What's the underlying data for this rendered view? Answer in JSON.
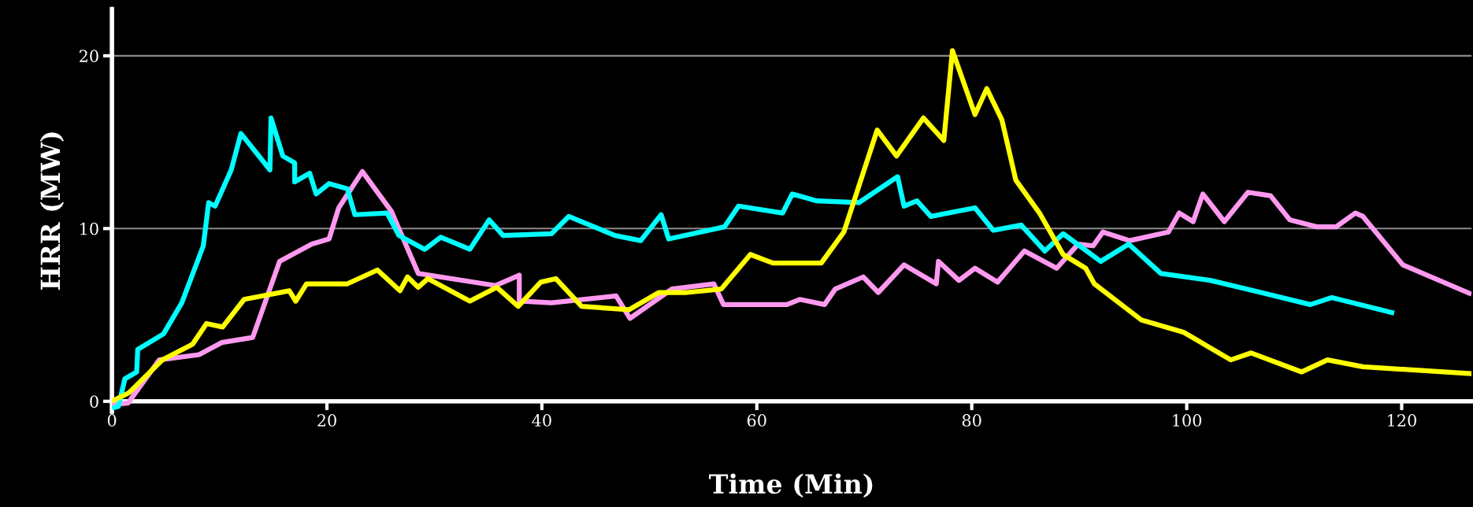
{
  "chart_data": {
    "type": "line",
    "xlabel": "Time (Min)",
    "ylabel": "HRR (MW)",
    "xlim": [
      0,
      126.5
    ],
    "ylim": [
      -0.6,
      22.7
    ],
    "xticks": [
      0,
      20,
      40,
      60,
      80,
      100,
      120
    ],
    "yticks": [
      0,
      10,
      20
    ],
    "grid": "y",
    "marker": "none",
    "line_style": "solid",
    "series": [
      {
        "color": "#ff99f0",
        "x": [
          0,
          1.5,
          4.4,
          8.1,
          10.2,
          13.1,
          15.6,
          18.6,
          20.2,
          21.1,
          23.3,
          26.0,
          28.5,
          35.7,
          37.9,
          37.9,
          40.9,
          46.9,
          48.2,
          52.1,
          56.0,
          56.9,
          62.8,
          64.0,
          66.3,
          67.3,
          69.9,
          71.3,
          73.7,
          76.7,
          76.9,
          78.8,
          80.3,
          82.4,
          84.9,
          87.9,
          89.9,
          91.3,
          92.2,
          94.7,
          98.3,
          99.3,
          100.6,
          101.5,
          103.5,
          105.7,
          107.8,
          109.6,
          112.1,
          113.9,
          115.7,
          116.4,
          120.1,
          126.5
        ],
        "values": [
          -0.2,
          -0.1,
          2.4,
          2.7,
          3.4,
          3.7,
          8.1,
          9.1,
          9.4,
          11.2,
          13.3,
          11.0,
          7.4,
          6.7,
          7.3,
          5.8,
          5.7,
          6.1,
          4.8,
          6.5,
          6.8,
          5.6,
          5.6,
          5.9,
          5.6,
          6.5,
          7.2,
          6.3,
          7.9,
          6.8,
          8.1,
          7.0,
          7.7,
          6.9,
          8.7,
          7.7,
          9.1,
          9.0,
          9.8,
          9.3,
          9.8,
          10.9,
          10.4,
          12.0,
          10.4,
          12.1,
          11.9,
          10.5,
          10.1,
          10.1,
          10.9,
          10.7,
          7.9,
          6.2
        ]
      },
      {
        "color": "#00ffff",
        "x": [
          0,
          0.6,
          1.2,
          2.3,
          2.4,
          4.8,
          6.5,
          8.5,
          9.0,
          9.6,
          11.1,
          12.0,
          14.7,
          14.8,
          15.9,
          17.0,
          17.0,
          18.4,
          19.0,
          20.2,
          21.9,
          22.6,
          25.6,
          26.7,
          29.1,
          30.6,
          33.3,
          35.1,
          36.4,
          40.9,
          42.5,
          46.8,
          49.2,
          51.1,
          51.8,
          57.0,
          58.3,
          62.4,
          63.3,
          65.6,
          69.5,
          73.1,
          73.7,
          74.9,
          76.2,
          80.3,
          82.0,
          84.6,
          86.8,
          88.5,
          92.0,
          94.6,
          97.6,
          102.2,
          106.9,
          111.5,
          113.5,
          119.3
        ],
        "values": [
          -0.4,
          -0.3,
          1.3,
          1.7,
          3.0,
          3.9,
          5.7,
          9.0,
          11.5,
          11.3,
          13.4,
          15.5,
          13.4,
          16.4,
          14.2,
          13.8,
          12.7,
          13.2,
          12.0,
          12.6,
          12.3,
          10.8,
          10.9,
          9.6,
          8.8,
          9.5,
          8.8,
          10.5,
          9.6,
          9.7,
          10.7,
          9.6,
          9.3,
          10.8,
          9.4,
          10.1,
          11.3,
          10.9,
          12.0,
          11.6,
          11.5,
          13.0,
          11.3,
          11.6,
          10.7,
          11.2,
          9.9,
          10.2,
          8.7,
          9.7,
          8.1,
          9.1,
          7.4,
          7.0,
          6.3,
          5.6,
          6.0,
          5.1
        ]
      },
      {
        "color": "#ffff00",
        "x": [
          0,
          1.6,
          4.7,
          7.5,
          8.8,
          10.3,
          12.3,
          16.5,
          17.1,
          18.1,
          21.9,
          24.7,
          26.8,
          27.5,
          28.5,
          29.4,
          33.3,
          35.8,
          37.8,
          39.9,
          41.3,
          43.7,
          48.1,
          50.9,
          53.5,
          56.7,
          59.4,
          61.5,
          66.0,
          68.1,
          69.1,
          71.2,
          73.0,
          75.5,
          77.4,
          78.2,
          80.3,
          81.4,
          82.8,
          84.1,
          86.3,
          88.5,
          90.6,
          91.4,
          95.8,
          99.7,
          104.1,
          106.0,
          110.7,
          113.1,
          116.4,
          126.5
        ],
        "values": [
          0.0,
          0.5,
          2.4,
          3.3,
          4.5,
          4.3,
          5.9,
          6.4,
          5.8,
          6.8,
          6.8,
          7.6,
          6.4,
          7.2,
          6.6,
          7.1,
          5.8,
          6.6,
          5.5,
          6.9,
          7.1,
          5.5,
          5.3,
          6.3,
          6.3,
          6.5,
          8.5,
          8.0,
          8.0,
          9.8,
          11.7,
          15.7,
          14.2,
          16.4,
          15.1,
          20.3,
          16.6,
          18.1,
          16.3,
          12.8,
          10.9,
          8.5,
          7.7,
          6.8,
          4.7,
          4.0,
          2.4,
          2.8,
          1.7,
          2.4,
          2.0,
          1.6
        ]
      }
    ]
  }
}
